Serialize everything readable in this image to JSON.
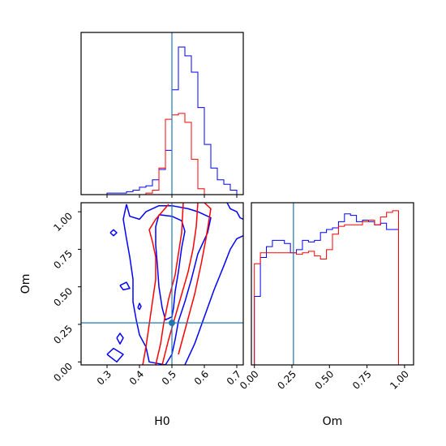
{
  "colors": {
    "series_a": "#0000ff",
    "series_b": "#ff0000",
    "truth": "#1f77b4",
    "frame": "#000000"
  },
  "chart_data": [
    {
      "panel": "H0 marginal histogram",
      "type": "histogram",
      "x_parameter": "H0",
      "xlim": [
        0.22,
        0.72
      ],
      "bin_edges": [
        0.22,
        0.24,
        0.26,
        0.28,
        0.3,
        0.32,
        0.34,
        0.36,
        0.38,
        0.4,
        0.42,
        0.44,
        0.46,
        0.48,
        0.5,
        0.52,
        0.54,
        0.56,
        0.58,
        0.6,
        0.62,
        0.64,
        0.66,
        0.68,
        0.7,
        0.72
      ],
      "series": [
        {
          "color": "#0000ff",
          "counts": [
            0,
            0,
            0,
            0,
            0.01,
            0.01,
            0.01,
            0.02,
            0.03,
            0.05,
            0.06,
            0.1,
            0.17,
            0.3,
            0.71,
            1.0,
            0.94,
            0.83,
            0.59,
            0.34,
            0.18,
            0.1,
            0.07,
            0.03,
            0
          ]
        },
        {
          "color": "#ff0000",
          "counts": [
            0,
            0,
            0,
            0,
            0,
            0,
            0,
            0,
            0,
            0,
            0.01,
            0.03,
            0.18,
            0.51,
            0.54,
            0.55,
            0.49,
            0.24,
            0.04,
            0,
            0,
            0,
            0,
            0,
            0
          ]
        }
      ],
      "truth_line_x": 0.5,
      "tick_values": [
        0.3,
        0.4,
        0.5,
        0.6,
        0.7
      ]
    },
    {
      "panel": "H0 vs Om 2D contours",
      "type": "contour",
      "xlabel": "H0",
      "ylabel": "Om",
      "xlim": [
        0.22,
        0.72
      ],
      "ylim": [
        -0.02,
        1.06
      ],
      "x_ticks": [
        "0.3",
        "0.4",
        "0.5",
        "0.6",
        "0.7"
      ],
      "y_ticks": [
        "0.00",
        "0.25",
        "0.50",
        "0.75",
        "1.00"
      ],
      "x_tick_values": [
        0.3,
        0.4,
        0.5,
        0.6,
        0.7
      ],
      "y_tick_values": [
        0.0,
        0.25,
        0.5,
        0.75,
        1.0
      ],
      "truth_point": [
        0.5,
        0.26
      ],
      "contours": [
        {
          "color": "#0000ff",
          "points": [
            [
              0.36,
              1.05
            ],
            [
              0.37,
              0.97
            ],
            [
              0.4,
              0.95
            ],
            [
              0.42,
              1.0
            ],
            [
              0.46,
              1.04
            ],
            [
              0.5,
              1.04
            ],
            [
              0.55,
              1.02
            ],
            [
              0.58,
              1.0
            ],
            [
              0.62,
              0.96
            ],
            [
              0.61,
              0.86
            ],
            [
              0.58,
              0.72
            ],
            [
              0.56,
              0.55
            ],
            [
              0.54,
              0.4
            ],
            [
              0.52,
              0.27
            ],
            [
              0.51,
              0.15
            ],
            [
              0.5,
              0.05
            ],
            [
              0.48,
              -0.02
            ],
            [
              0.43,
              0.0
            ],
            [
              0.42,
              0.1
            ],
            [
              0.4,
              0.18
            ],
            [
              0.39,
              0.28
            ],
            [
              0.38,
              0.4
            ],
            [
              0.38,
              0.55
            ],
            [
              0.37,
              0.7
            ],
            [
              0.36,
              0.82
            ],
            [
              0.35,
              0.95
            ],
            [
              0.36,
              1.05
            ]
          ]
        },
        {
          "color": "#0000ff",
          "points": [
            [
              0.46,
              0.98
            ],
            [
              0.5,
              0.97
            ],
            [
              0.53,
              0.94
            ],
            [
              0.54,
              0.87
            ],
            [
              0.53,
              0.76
            ],
            [
              0.52,
              0.6
            ],
            [
              0.51,
              0.47
            ],
            [
              0.505,
              0.36
            ],
            [
              0.5,
              0.3
            ],
            [
              0.48,
              0.28
            ],
            [
              0.47,
              0.36
            ],
            [
              0.46,
              0.5
            ],
            [
              0.455,
              0.65
            ],
            [
              0.45,
              0.78
            ],
            [
              0.45,
              0.9
            ],
            [
              0.46,
              0.98
            ]
          ]
        },
        {
          "color": "#0000ff",
          "points": [
            [
              0.54,
              -0.02
            ],
            [
              0.57,
              0.12
            ],
            [
              0.6,
              0.3
            ],
            [
              0.63,
              0.48
            ],
            [
              0.66,
              0.64
            ],
            [
              0.68,
              0.75
            ],
            [
              0.7,
              0.82
            ],
            [
              0.72,
              0.84
            ]
          ]
        },
        {
          "color": "#0000ff",
          "points": [
            [
              0.67,
              1.06
            ],
            [
              0.68,
              1.02
            ],
            [
              0.7,
              1.0
            ],
            [
              0.71,
              0.96
            ],
            [
              0.72,
              0.95
            ]
          ]
        },
        {
          "color": "#0000ff",
          "points": [
            [
              0.31,
              0.86
            ],
            [
              0.32,
              0.88
            ],
            [
              0.33,
              0.86
            ],
            [
              0.32,
              0.84
            ],
            [
              0.31,
              0.86
            ]
          ]
        },
        {
          "color": "#0000ff",
          "points": [
            [
              0.34,
              0.51
            ],
            [
              0.36,
              0.53
            ],
            [
              0.37,
              0.49
            ],
            [
              0.35,
              0.48
            ],
            [
              0.34,
              0.51
            ]
          ]
        },
        {
          "color": "#0000ff",
          "points": [
            [
              0.395,
              0.36
            ],
            [
              0.4,
              0.39
            ],
            [
              0.405,
              0.37
            ],
            [
              0.4,
              0.35
            ],
            [
              0.395,
              0.36
            ]
          ]
        },
        {
          "color": "#0000ff",
          "points": [
            [
              0.33,
              0.16
            ],
            [
              0.34,
              0.19
            ],
            [
              0.35,
              0.16
            ],
            [
              0.34,
              0.12
            ],
            [
              0.33,
              0.16
            ]
          ]
        },
        {
          "color": "#0000ff",
          "points": [
            [
              0.3,
              0.05
            ],
            [
              0.32,
              0.09
            ],
            [
              0.35,
              0.05
            ],
            [
              0.33,
              0.0
            ],
            [
              0.3,
              0.05
            ]
          ]
        },
        {
          "color": "#ff0000",
          "points": [
            [
              0.49,
              1.05
            ],
            [
              0.47,
              1.0
            ],
            [
              0.45,
              0.95
            ],
            [
              0.43,
              0.88
            ],
            [
              0.44,
              0.8
            ],
            [
              0.45,
              0.7
            ],
            [
              0.45,
              0.55
            ],
            [
              0.44,
              0.4
            ],
            [
              0.43,
              0.25
            ],
            [
              0.42,
              0.1
            ],
            [
              0.41,
              -0.02
            ]
          ]
        },
        {
          "color": "#ff0000",
          "points": [
            [
              0.45,
              -0.02
            ],
            [
              0.465,
              0.12
            ],
            [
              0.475,
              0.26
            ],
            [
              0.49,
              0.42
            ],
            [
              0.51,
              0.58
            ],
            [
              0.52,
              0.72
            ],
            [
              0.53,
              0.86
            ],
            [
              0.535,
              1.06
            ]
          ]
        },
        {
          "color": "#ff0000",
          "points": [
            [
              0.47,
              -0.02
            ],
            [
              0.49,
              0.15
            ],
            [
              0.51,
              0.3
            ],
            [
              0.53,
              0.45
            ],
            [
              0.55,
              0.6
            ],
            [
              0.565,
              0.75
            ],
            [
              0.575,
              0.9
            ],
            [
              0.58,
              1.06
            ]
          ]
        },
        {
          "color": "#ff0000",
          "points": [
            [
              0.52,
              0.05
            ],
            [
              0.545,
              0.25
            ],
            [
              0.57,
              0.45
            ],
            [
              0.59,
              0.65
            ],
            [
              0.605,
              0.82
            ],
            [
              0.62,
              1.02
            ],
            [
              0.6,
              1.06
            ]
          ]
        }
      ]
    },
    {
      "panel": "Om marginal histogram",
      "type": "histogram",
      "xlabel": "Om",
      "xlim": [
        -0.02,
        1.06
      ],
      "x_ticks": [
        "0.00",
        "0.25",
        "0.50",
        "0.75",
        "1.00"
      ],
      "x_tick_values": [
        0.0,
        0.25,
        0.5,
        0.75,
        1.0
      ],
      "truth_line_x": 0.26,
      "bin_edges": [
        0.0,
        0.04,
        0.08,
        0.12,
        0.16,
        0.2,
        0.24,
        0.28,
        0.32,
        0.36,
        0.4,
        0.44,
        0.48,
        0.52,
        0.56,
        0.6,
        0.64,
        0.68,
        0.72,
        0.76,
        0.8,
        0.84,
        0.88,
        0.92,
        0.96,
        1.0,
        1.04
      ],
      "series": [
        {
          "color": "#0000ff",
          "counts": [
            0.44,
            0.69,
            0.76,
            0.8,
            0.8,
            0.78,
            0.72,
            0.74,
            0.8,
            0.79,
            0.8,
            0.85,
            0.87,
            0.88,
            0.92,
            0.97,
            0.96,
            0.92,
            0.93,
            0.92,
            0.9,
            0.91,
            0.87,
            0.87,
            0.0,
            0.0
          ]
        },
        {
          "color": "#ff0000",
          "counts": [
            0.65,
            0.72,
            0.72,
            0.72,
            0.72,
            0.72,
            0.72,
            0.71,
            0.72,
            0.73,
            0.7,
            0.68,
            0.74,
            0.84,
            0.89,
            0.9,
            0.9,
            0.9,
            0.92,
            0.93,
            0.9,
            0.95,
            0.98,
            0.99,
            0.0,
            0.0
          ]
        }
      ]
    }
  ]
}
